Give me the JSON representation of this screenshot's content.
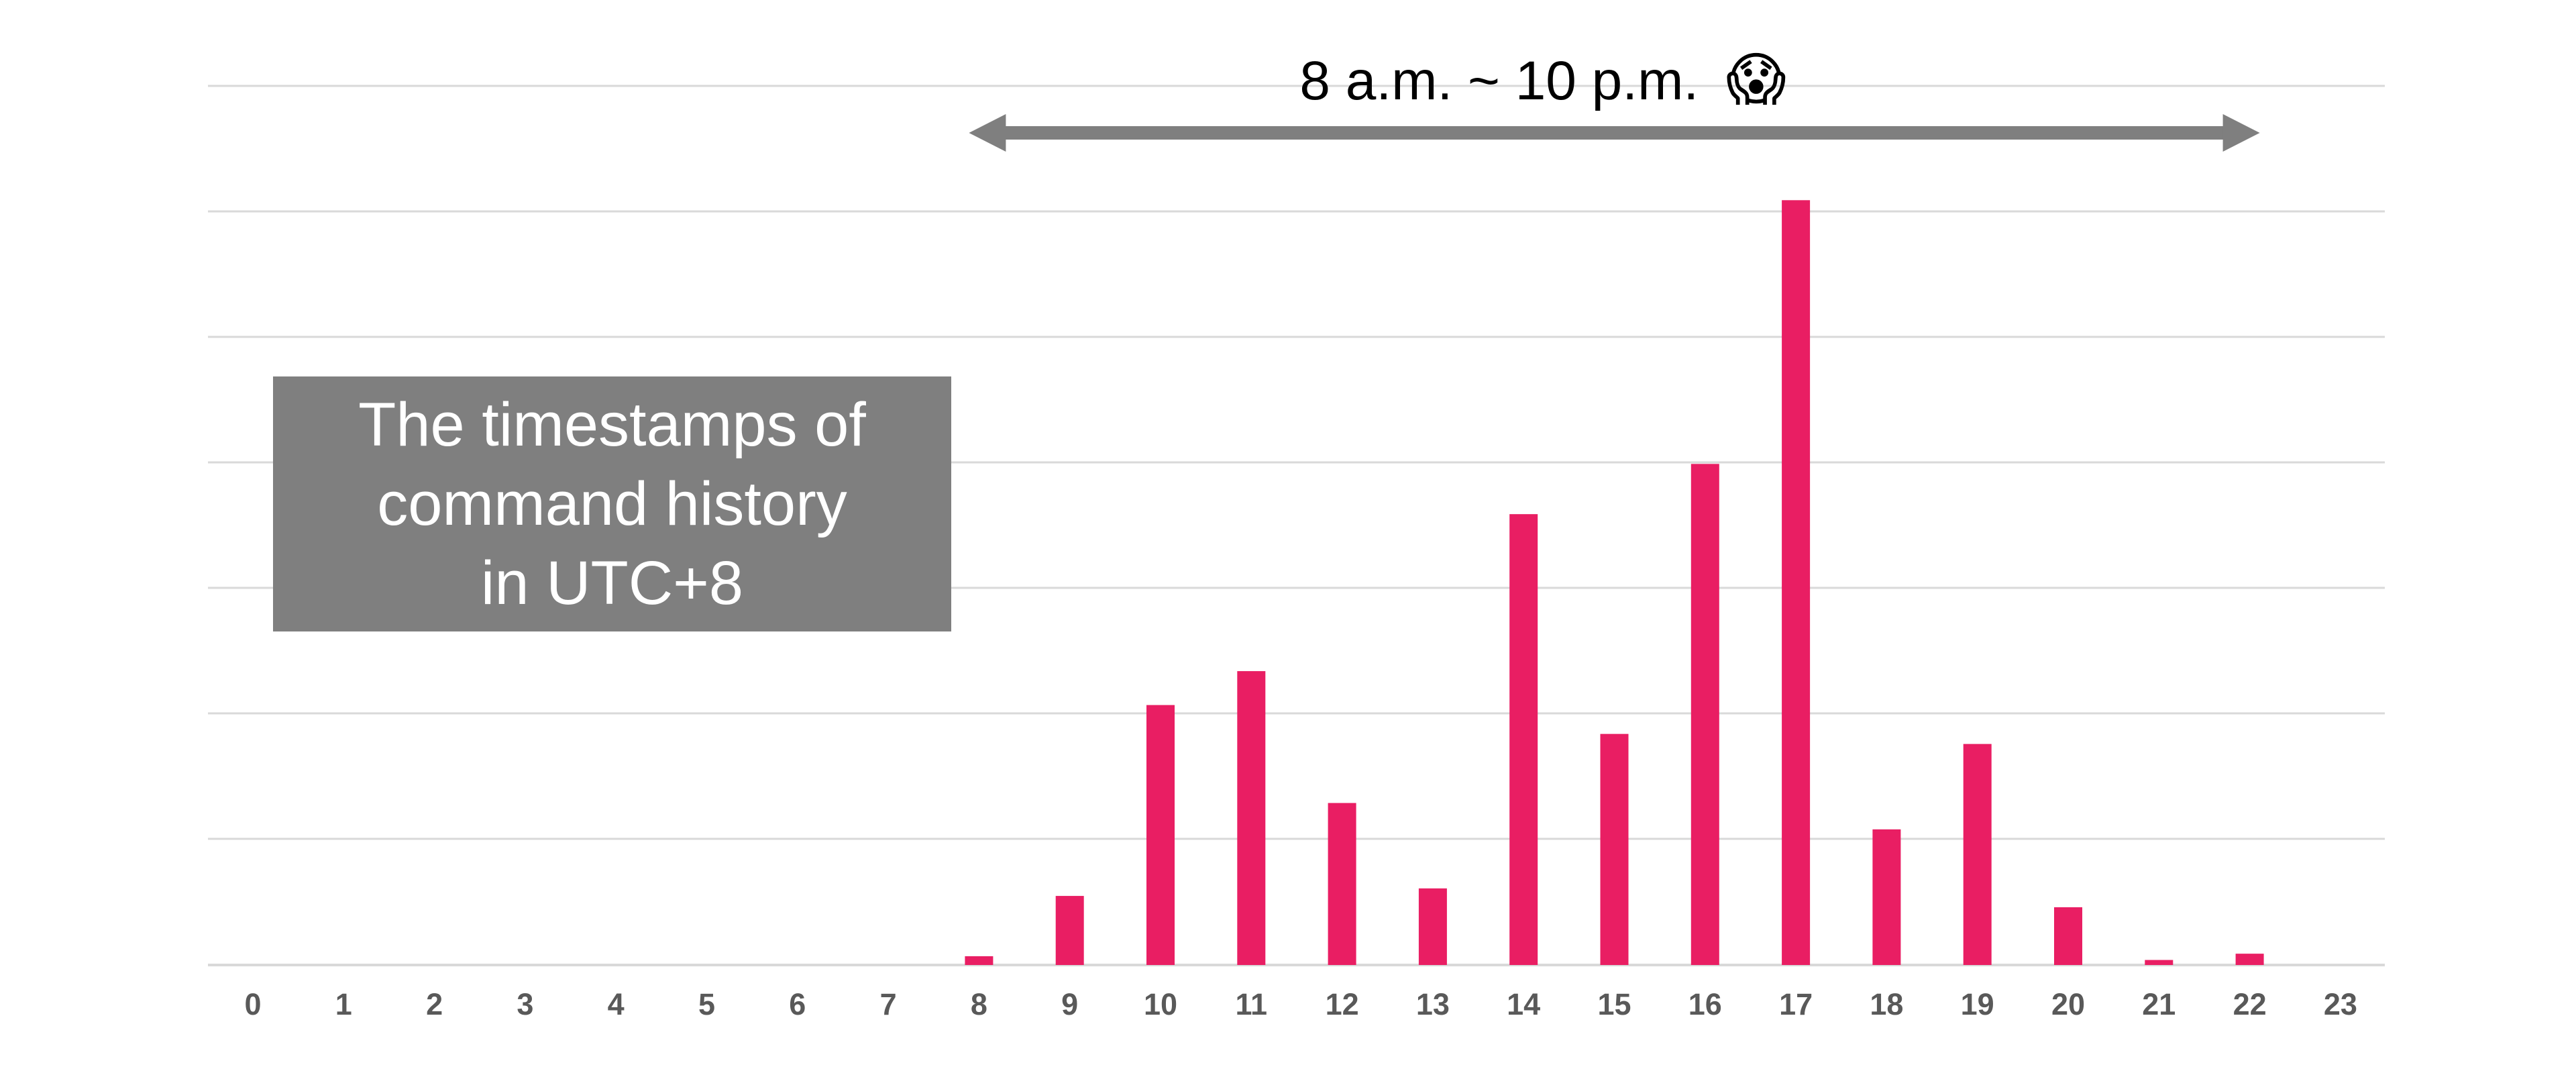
{
  "chart_data": {
    "type": "bar",
    "categories": [
      "0",
      "1",
      "2",
      "3",
      "4",
      "5",
      "6",
      "7",
      "8",
      "9",
      "10",
      "11",
      "12",
      "13",
      "14",
      "15",
      "16",
      "17",
      "18",
      "19",
      "20",
      "21",
      "22",
      "23"
    ],
    "values": [
      0,
      0,
      0,
      0,
      0,
      0,
      0,
      0,
      0.07,
      0.55,
      2.07,
      2.34,
      1.29,
      0.61,
      3.59,
      1.84,
      3.99,
      6.09,
      1.08,
      1.76,
      0.46,
      0.04,
      0.09,
      0
    ],
    "ylim": [
      0,
      7
    ],
    "grid": true,
    "bar_color": "#E91E63",
    "gridline_color": "#D9D9D9",
    "annotations": {
      "range_arrow": {
        "from": 8,
        "to": 22,
        "label": "8 a.m. ~ 10 p.m.",
        "emoji": "😱",
        "color": "#7f7f7f"
      },
      "note": {
        "lines": [
          "The timestamps of",
          "command history",
          "in UTC+8"
        ],
        "background": "#7f7f7f"
      }
    }
  }
}
